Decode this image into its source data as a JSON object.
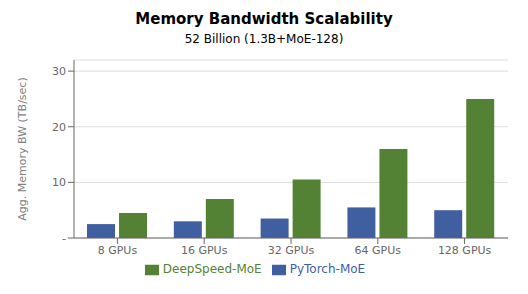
{
  "chart_data": {
    "type": "bar",
    "title": "Memory Bandwidth Scalability",
    "subtitle": "52 Billion (1.3B+MoE-128)",
    "ylabel": "Agg. Memory BW (TB/sec)",
    "categories": [
      "8 GPUs",
      "16 GPUs",
      "32 GPUs",
      "64 GPUs",
      "128 GPUs"
    ],
    "series": [
      {
        "name": "PyTorch-MoE",
        "color": "#3f5fa0",
        "values": [
          2.5,
          3.0,
          3.5,
          5.5,
          5.0
        ]
      },
      {
        "name": "DeepSpeed-MoE",
        "color": "#548235",
        "values": [
          4.5,
          7.0,
          10.5,
          16.0,
          25.0
        ]
      }
    ],
    "ylim": [
      0,
      32
    ],
    "yticks": [
      {
        "value": 0,
        "label": "-"
      },
      10,
      20,
      30
    ],
    "grid": true,
    "legend": "bottom"
  }
}
